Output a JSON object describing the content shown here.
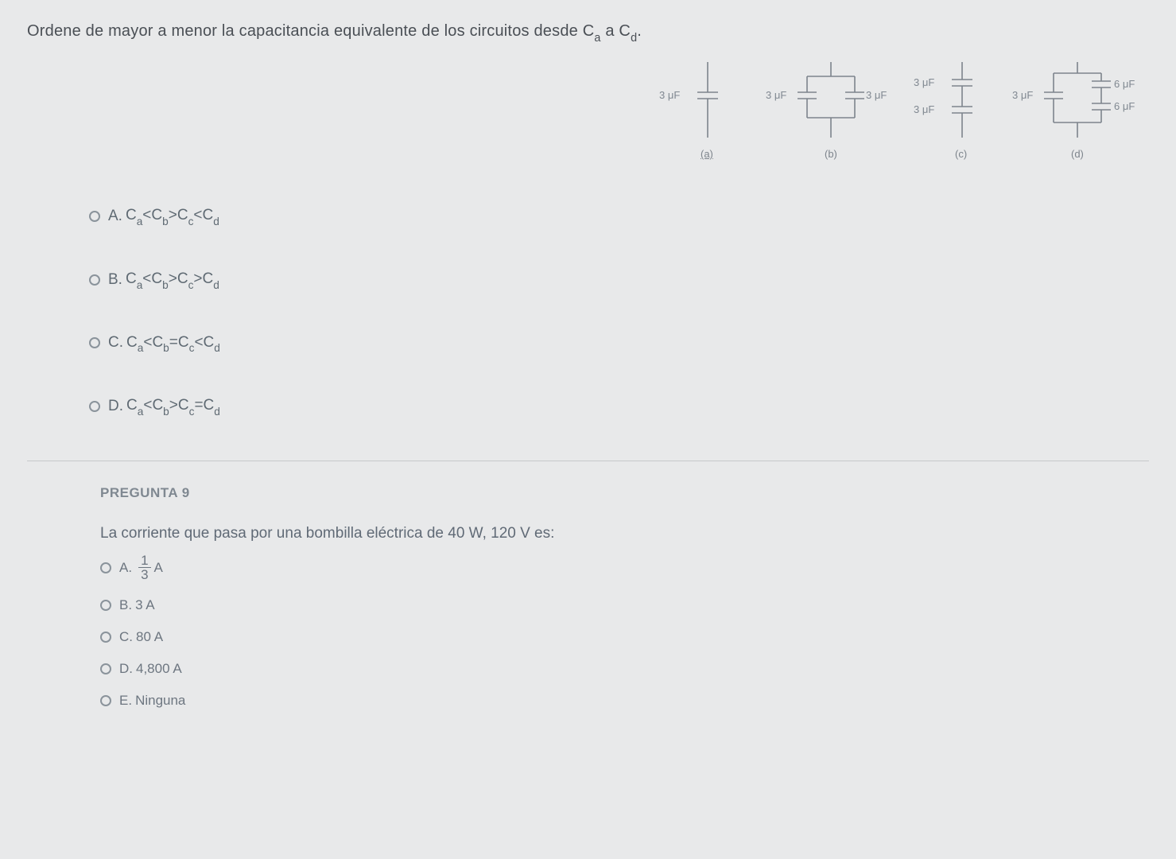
{
  "question": {
    "prefix": "Ordene de mayor a menor la capacitancia equivalente de los circuitos desde C",
    "sub1": "a",
    "mid": " a C",
    "sub2": "d",
    "suffix": "."
  },
  "figures": {
    "a": {
      "label": "(a)",
      "cap1": "3 μF"
    },
    "b": {
      "label": "(b)",
      "cap1": "3 μF",
      "cap2": "3 μF"
    },
    "c": {
      "label": "(c)",
      "cap1": "3 μF",
      "cap2": "3 μF"
    },
    "d": {
      "label": "(d)",
      "cap1": "3 μF",
      "cap2": "6 μF",
      "cap3": "6 μF"
    }
  },
  "options": [
    {
      "letter": "A.",
      "parts": [
        "C",
        "a",
        "<C",
        "b",
        ">C",
        "c",
        "<C",
        "d"
      ]
    },
    {
      "letter": "B.",
      "parts": [
        "C",
        "a",
        "<C",
        "b",
        ">C",
        "c",
        ">C",
        "d"
      ]
    },
    {
      "letter": "C.",
      "parts": [
        "C",
        "a",
        "<C",
        "b",
        "=C",
        "c",
        "<C",
        "d"
      ]
    },
    {
      "letter": "D.",
      "parts": [
        "C",
        "a",
        "<C",
        "b",
        ">C",
        "c",
        "=C",
        "d"
      ]
    }
  ],
  "q9": {
    "title": "PREGUNTA 9",
    "text": "La corriente que pasa por una bombilla eléctrica de 40 W, 120 V es:",
    "opts": [
      {
        "letter": "A.",
        "type": "frac",
        "num": "1",
        "den": "3",
        "suffix": "A"
      },
      {
        "letter": "B.",
        "text": "3 A"
      },
      {
        "letter": "C.",
        "text": "80 A"
      },
      {
        "letter": "D.",
        "text": "4,800 A"
      },
      {
        "letter": "E.",
        "text": "Ninguna"
      }
    ]
  },
  "colors": {
    "bg": "#e8e9ea",
    "text_main": "#4a5057",
    "text_muted": "#7d848c",
    "radio_border": "#8a939b",
    "divider": "#c6c8ca"
  }
}
